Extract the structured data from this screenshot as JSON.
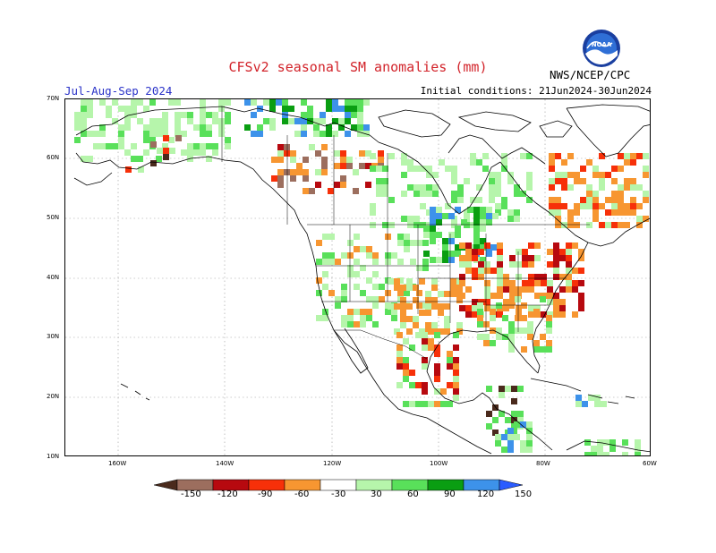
{
  "header": {
    "title": "CFSv2 seasonal SM anomalies (mm)",
    "season": "Jul-Aug-Sep 2024",
    "initial_conditions": "Initial conditions: 21Jun2024-30Jun2024",
    "agency": "NWS/NCEP/CPC",
    "logo_text": "NOAA"
  },
  "axes": {
    "lat_labels": [
      "70N",
      "60N",
      "50N",
      "40N",
      "30N",
      "20N",
      "10N"
    ],
    "lon_labels": [
      "160W",
      "140W",
      "120W",
      "100W",
      "80W",
      "60W"
    ]
  },
  "legend": {
    "labels": [
      "-150",
      "-120",
      "-90",
      "-60",
      "-30",
      "30",
      "60",
      "90",
      "120",
      "150"
    ],
    "colors": [
      "#4a2a1c",
      "#9c6e5e",
      "#b7090f",
      "#f73009",
      "#f79631",
      "#ffffff",
      "#b6f5ab",
      "#59e05a",
      "#0a9e12",
      "#3d92ea",
      "#2b5cff"
    ]
  }
}
